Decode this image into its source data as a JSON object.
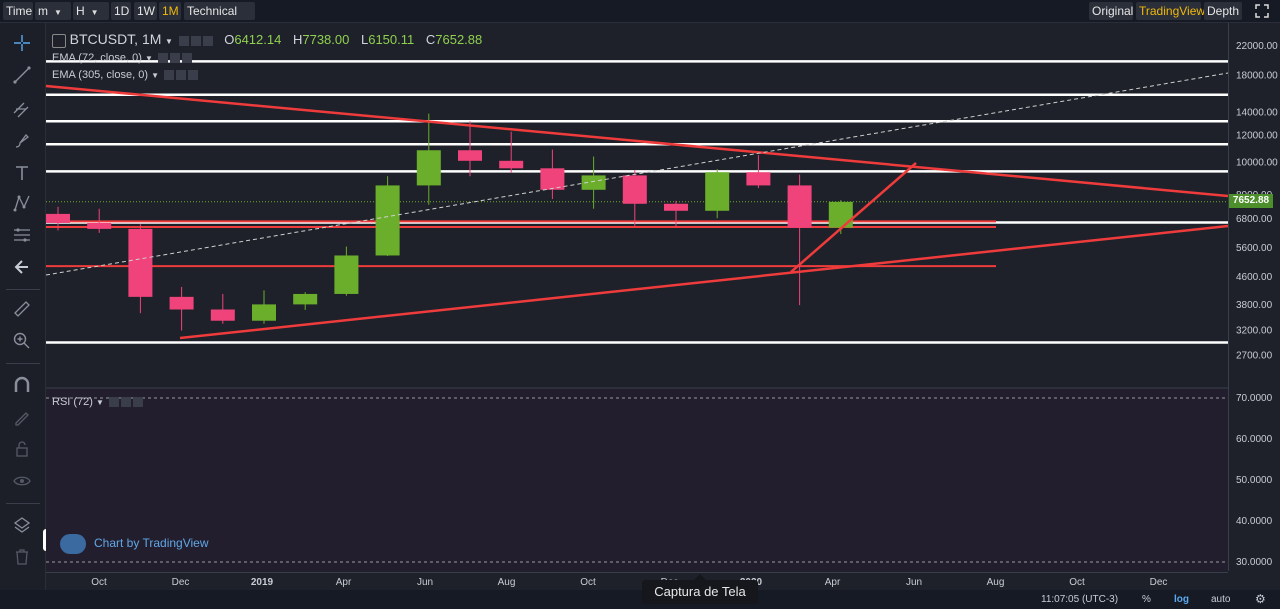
{
  "topbar": {
    "time_label": "Time",
    "minute_select": "m",
    "hour_select": "H",
    "interval_1d": "1D",
    "interval_1w": "1W",
    "interval_1m": "1M",
    "technical_ind": "Technical Ind",
    "tab_original": "Original",
    "tab_tradingview": "TradingView",
    "tab_depth": "Depth",
    "fullscreen_icon": "expand-icon"
  },
  "left_tools": [
    "crosshair-icon",
    "trendline-icon",
    "pitchfork-icon",
    "brush-icon",
    "text-icon",
    "pattern-icon",
    "fib-icon",
    "back-arrow-icon",
    "ruler-icon",
    "zoom-in-icon",
    "magnet-icon",
    "lock-draw-icon",
    "lock-icon",
    "eye-icon",
    "layers-icon",
    "trash-icon"
  ],
  "legend": {
    "symbol": "BTCUSDT, 1M",
    "o_label": "O",
    "o_value": "6412.14",
    "h_label": "H",
    "h_value": "7738.00",
    "l_label": "L",
    "l_value": "6150.11",
    "c_label": "C",
    "c_value": "7652.88"
  },
  "indicators": {
    "ema1": "EMA (72, close, 0)",
    "ema2": "EMA (305, close, 0)",
    "rsi": "RSI (72)"
  },
  "watermark": "Chart by TradingView",
  "tooltip": "Captura de Tela",
  "bottom": {
    "clock": "11:07:05 (UTC-3)",
    "percent": "%",
    "log": "log",
    "auto": "auto"
  },
  "colors": {
    "up": "#6aae2c",
    "down": "#f0437b",
    "line_red": "#ef3b3b",
    "line_white": "#ffffff",
    "accent": "#f0b90b"
  },
  "chart_data": {
    "type": "candlestick",
    "symbol": "BTCUSDT",
    "interval": "1M",
    "log_scale": true,
    "ylim": [
      2500,
      24000
    ],
    "price_ticks": [
      "22000.00",
      "18000.00",
      "14000.00",
      "12000.00",
      "10000.00",
      "8000.00",
      "6800.00",
      "5600.00",
      "4600.00",
      "3800.00",
      "3200.00",
      "2700.00"
    ],
    "last_price": "7652.88",
    "time_ticks": [
      "Oct",
      "Dec",
      "2019",
      "Apr",
      "Jun",
      "Aug",
      "Oct",
      "Dec",
      "2020",
      "Apr",
      "Jun",
      "Aug",
      "Oct",
      "Dec"
    ],
    "candles": [
      {
        "month": "2018-09",
        "open": 7050,
        "close": 6630,
        "high": 7400,
        "low": 6300
      },
      {
        "month": "2018-10",
        "open": 6630,
        "close": 6370,
        "high": 7300,
        "low": 6200
      },
      {
        "month": "2018-11",
        "open": 6370,
        "close": 4020,
        "high": 6580,
        "low": 3600
      },
      {
        "month": "2018-12",
        "open": 4020,
        "close": 3690,
        "high": 4300,
        "low": 3200
      },
      {
        "month": "2019-01",
        "open": 3690,
        "close": 3420,
        "high": 4100,
        "low": 3350
      },
      {
        "month": "2019-02",
        "open": 3420,
        "close": 3820,
        "high": 4200,
        "low": 3350
      },
      {
        "month": "2019-03",
        "open": 3820,
        "close": 4100,
        "high": 4150,
        "low": 3680
      },
      {
        "month": "2019-04",
        "open": 4100,
        "close": 5320,
        "high": 5650,
        "low": 4050
      },
      {
        "month": "2019-05",
        "open": 5320,
        "close": 8550,
        "high": 9100,
        "low": 5300
      },
      {
        "month": "2019-06",
        "open": 8550,
        "close": 10850,
        "high": 13900,
        "low": 7500
      },
      {
        "month": "2019-07",
        "open": 10850,
        "close": 10100,
        "high": 13200,
        "low": 9100
      },
      {
        "month": "2019-08",
        "open": 10100,
        "close": 9600,
        "high": 12300,
        "low": 9300
      },
      {
        "month": "2019-09",
        "open": 9600,
        "close": 8300,
        "high": 10900,
        "low": 7800
      },
      {
        "month": "2019-10",
        "open": 8300,
        "close": 9150,
        "high": 10400,
        "low": 7300
      },
      {
        "month": "2019-11",
        "open": 9150,
        "close": 7550,
        "high": 9500,
        "low": 6500
      },
      {
        "month": "2019-12",
        "open": 7550,
        "close": 7200,
        "high": 7700,
        "low": 6450
      },
      {
        "month": "2020-01",
        "open": 7200,
        "close": 9350,
        "high": 9550,
        "low": 6850
      },
      {
        "month": "2020-02",
        "open": 9350,
        "close": 8550,
        "high": 10500,
        "low": 8400
      },
      {
        "month": "2020-03",
        "open": 8550,
        "close": 6420,
        "high": 9200,
        "low": 3800
      },
      {
        "month": "2020-04",
        "open": 6420,
        "close": 7650,
        "high": 7740,
        "low": 6150
      }
    ],
    "horizontal_lines_white": [
      19800,
      15800,
      13200,
      11300,
      9400,
      6650,
      2950
    ],
    "horizontal_lines_red": [
      6700,
      6450,
      4950
    ],
    "rsi_levels": [
      "70.0000",
      "60.0000",
      "50.0000",
      "40.0000",
      "30.0000"
    ]
  }
}
